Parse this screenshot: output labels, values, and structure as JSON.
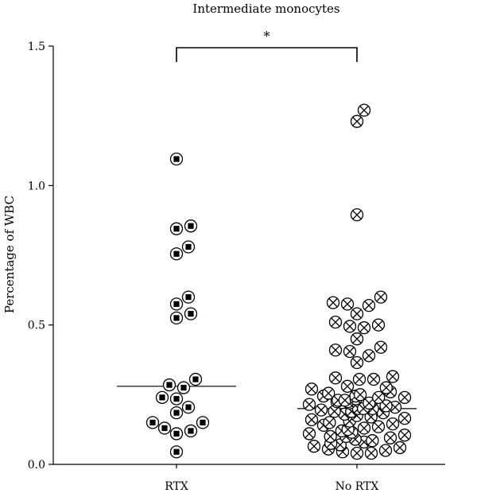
{
  "chart_data": {
    "type": "scatter",
    "title": "Intermediate monocytes",
    "xlabel": "",
    "ylabel": "Percentage of WBC",
    "ylim": [
      0,
      1.5
    ],
    "yticks": [
      0.0,
      0.5,
      1.0,
      1.5
    ],
    "ytick_labels": [
      "0.0",
      "0.5",
      "1.0",
      "1.5"
    ],
    "categories": [
      "RTX",
      "No RTX"
    ],
    "grid": false,
    "significance": {
      "from": "RTX",
      "to": "No RTX",
      "label": "*"
    },
    "series": [
      {
        "category": "RTX",
        "marker": "circle-square",
        "median": 0.28,
        "values": [
          1.095,
          0.855,
          0.845,
          0.78,
          0.755,
          0.6,
          0.575,
          0.54,
          0.525,
          0.305,
          0.285,
          0.275,
          0.24,
          0.235,
          0.205,
          0.185,
          0.15,
          0.15,
          0.13,
          0.12,
          0.11,
          0.045
        ]
      },
      {
        "category": "No RTX",
        "marker": "circle-x",
        "median": 0.2,
        "values": [
          1.27,
          1.23,
          0.895,
          0.6,
          0.58,
          0.575,
          0.57,
          0.54,
          0.51,
          0.5,
          0.495,
          0.49,
          0.45,
          0.42,
          0.41,
          0.405,
          0.39,
          0.365,
          0.315,
          0.31,
          0.305,
          0.305,
          0.28,
          0.275,
          0.27,
          0.26,
          0.255,
          0.25,
          0.245,
          0.245,
          0.24,
          0.24,
          0.235,
          0.23,
          0.23,
          0.225,
          0.225,
          0.22,
          0.22,
          0.215,
          0.21,
          0.205,
          0.2,
          0.2,
          0.2,
          0.195,
          0.19,
          0.19,
          0.185,
          0.18,
          0.175,
          0.17,
          0.165,
          0.16,
          0.155,
          0.15,
          0.145,
          0.14,
          0.135,
          0.13,
          0.125,
          0.12,
          0.115,
          0.11,
          0.105,
          0.1,
          0.1,
          0.095,
          0.09,
          0.085,
          0.08,
          0.075,
          0.07,
          0.065,
          0.06,
          0.055,
          0.05,
          0.045,
          0.04,
          0.04
        ]
      }
    ]
  }
}
